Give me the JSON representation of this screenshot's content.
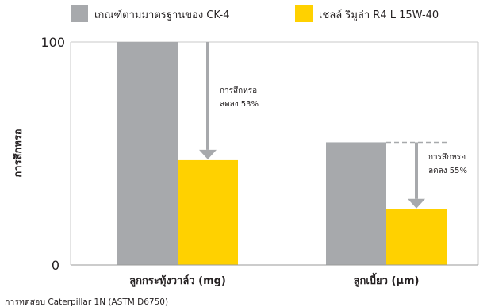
{
  "chart_data": {
    "type": "bar",
    "ylabel": "การสึกหรอ",
    "ylim": [
      0,
      100
    ],
    "y_ticks": [
      "100",
      "0"
    ],
    "categories": [
      "ลูกกระทุ้งวาล์ว (mg)",
      "ลูกเบี้ยว (µm)"
    ],
    "series": [
      {
        "name": "เกณฑ์ตามมาตรฐานของ CK-4",
        "color": "#a7a9ac",
        "values": [
          100,
          55
        ]
      },
      {
        "name": "เชลล์ ริมูล่า R4 L 15W-40",
        "color": "#ffd100",
        "values": [
          47,
          25
        ]
      }
    ],
    "annotations": [
      {
        "line1": "การสึกหรอ",
        "line2": "ลดลง 53%"
      },
      {
        "line1": "การสึกหรอ",
        "line2": "ลดลง 55%"
      }
    ],
    "footnote": "การทดสอบ Caterpillar 1N (ASTM D6750)"
  }
}
